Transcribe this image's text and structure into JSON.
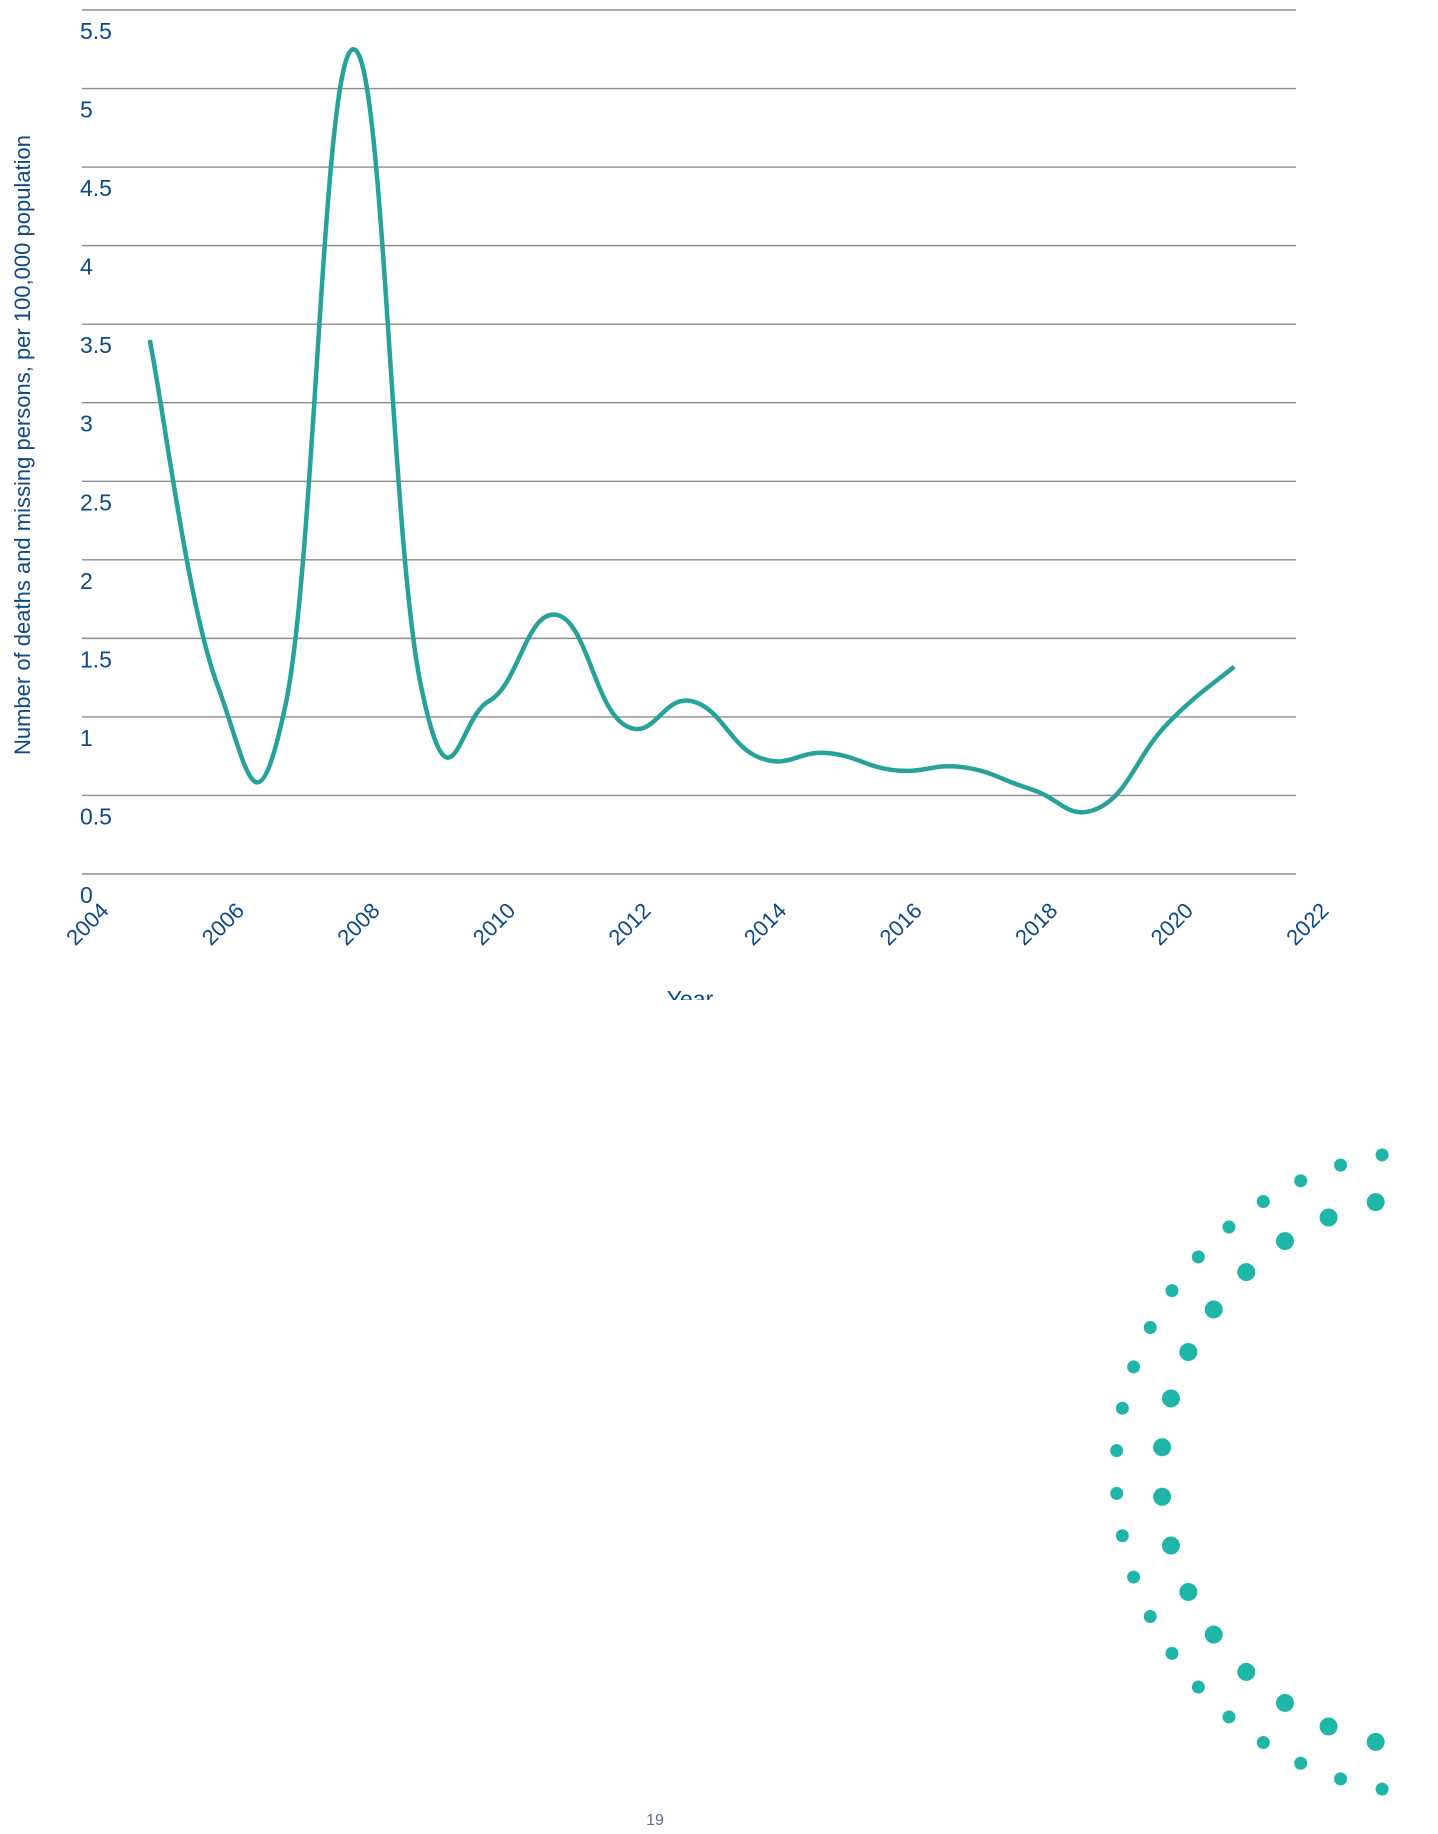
{
  "chart_data": {
    "type": "line",
    "title": "",
    "xlabel": "Year",
    "ylabel": "Number of deaths and missing persons, per 100,000 population",
    "xlim": [
      2004,
      2022
    ],
    "ylim": [
      0,
      5.5
    ],
    "x_ticks": [
      "2004",
      "2006",
      "2008",
      "2010",
      "2012",
      "2014",
      "2016",
      "2018",
      "2020",
      "2022"
    ],
    "y_ticks": [
      "0",
      "0.5",
      "1",
      "1.5",
      "2",
      "2.5",
      "3",
      "3.5",
      "4",
      "4.5",
      "5",
      "5.5"
    ],
    "grid": "horizontal",
    "legend": "none",
    "series": [
      {
        "x": [
          2005,
          2006,
          2007,
          2008,
          2009,
          2010,
          2011,
          2012,
          2013,
          2014,
          2015,
          2016,
          2017,
          2018,
          2019,
          2020,
          2021
        ],
        "values": [
          3.4,
          1.2,
          1.07,
          5.25,
          1.2,
          1.1,
          1.65,
          0.95,
          1.1,
          0.74,
          0.77,
          0.66,
          0.68,
          0.54,
          0.42,
          0.95,
          1.32
        ]
      }
    ]
  },
  "colors": {
    "line": "#26a29a",
    "grid": "#8c8c8c",
    "text": "#0d4a86",
    "decor_dots": "#1fb5a8"
  },
  "page": {
    "number": "19"
  }
}
